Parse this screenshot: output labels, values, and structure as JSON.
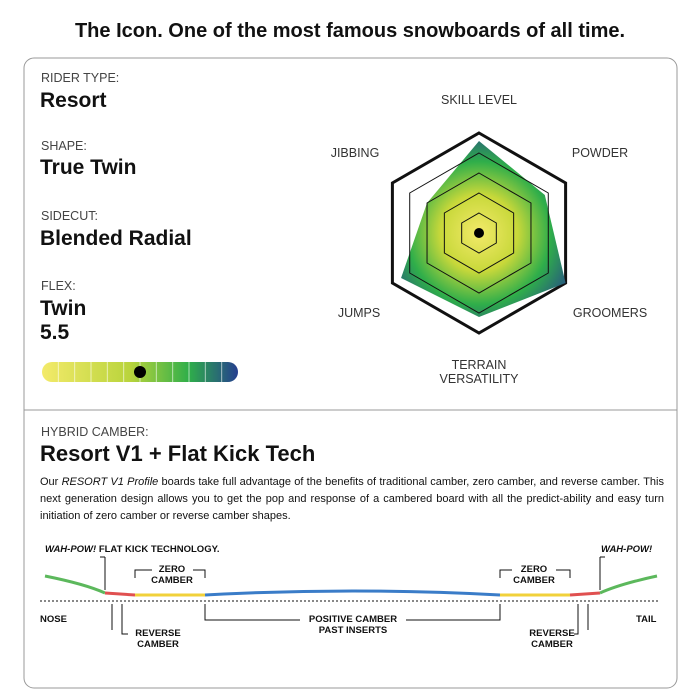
{
  "title": "The Icon. One of the most famous snowboards of all time.",
  "specs": [
    {
      "label": "RIDER TYPE:",
      "value": "Resort"
    },
    {
      "label": "SHAPE:",
      "value": "True Twin"
    },
    {
      "label": "SIDECUT:",
      "value": "Blended Radial"
    }
  ],
  "flex": {
    "label": "FLEX:",
    "value": "Twin",
    "rating": 5.5,
    "range": [
      1,
      10
    ]
  },
  "chart_data": {
    "type": "radar",
    "categories": [
      "SKILL LEVEL",
      "POWDER",
      "GROOMERS",
      "TERRAIN VERSATILITY",
      "JUMPS",
      "JIBBING"
    ],
    "values": [
      4.6,
      3.8,
      5,
      4.2,
      4.5,
      3
    ],
    "rlim": [
      0,
      5
    ],
    "rticks": [
      1,
      2,
      3,
      4,
      5
    ]
  },
  "camber": {
    "label": "HYBRID CAMBER:",
    "name": "Resort V1 + Flat Kick Tech",
    "description": {
      "before": "Our ",
      "italic": "RESORT V1 Profile",
      "after": " boards take full advantage of the benefits of traditional camber, zero camber, and reverse camber. This next generation design allows you to get the pop and response of a cambered board with all the predict-ability and easy turn initiation of zero camber or reverse camber shapes."
    },
    "diagram": {
      "kick_brand": "WAH-POW!",
      "kick_text": " FLAT KICK TECHNOLOGY.",
      "kick_right": "WAH-POW!",
      "zero": [
        "ZERO",
        "CAMBER"
      ],
      "reverse": [
        "REVERSE",
        "CAMBER"
      ],
      "positive": [
        "POSITIVE CAMBER",
        "PAST INSERTS"
      ],
      "nose": "NOSE",
      "tail": "TAIL"
    }
  }
}
